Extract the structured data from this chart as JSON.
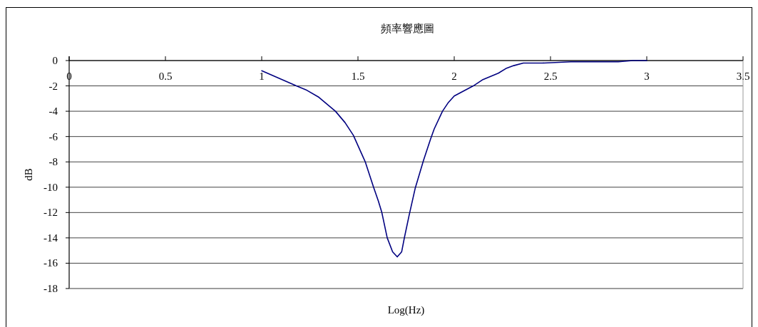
{
  "chart_data": {
    "type": "line",
    "title": "頻率響應圖",
    "xlabel": "Log(Hz)",
    "ylabel": "dB",
    "x": [
      1.0,
      1.18,
      1.229,
      1.297,
      1.383,
      1.433,
      1.476,
      1.538,
      1.581,
      1.606,
      1.624,
      1.652,
      1.68,
      1.704,
      1.727,
      1.741,
      1.766,
      1.797,
      1.84,
      1.877,
      1.896,
      1.939,
      1.97,
      2.0,
      2.099,
      2.149,
      2.229,
      2.272,
      2.309,
      2.359,
      2.457,
      2.606,
      2.852,
      2.927,
      3.0
    ],
    "series": [
      {
        "color": "#000080",
        "values": [
          -0.8,
          -2.0,
          -2.3,
          -2.9,
          -4.0,
          -4.9,
          -5.9,
          -8.0,
          -10.0,
          -11.1,
          -12.0,
          -14.0,
          -15.1,
          -15.5,
          -15.1,
          -14.0,
          -12.2,
          -10.1,
          -7.9,
          -6.2,
          -5.4,
          -4.0,
          -3.3,
          -2.8,
          -2.0,
          -1.5,
          -1.0,
          -0.6,
          -0.4,
          -0.2,
          -0.2,
          -0.1,
          -0.1,
          0,
          0
        ]
      }
    ],
    "xlim": [
      0,
      3.5
    ],
    "ylim": [
      -18,
      0
    ],
    "xticks": [
      0,
      0.5,
      1,
      1.5,
      2,
      2.5,
      3,
      3.5
    ],
    "yticks": [
      0,
      -2,
      -4,
      -6,
      -8,
      -10,
      -12,
      -14,
      -16,
      -18
    ],
    "grid": "y"
  }
}
